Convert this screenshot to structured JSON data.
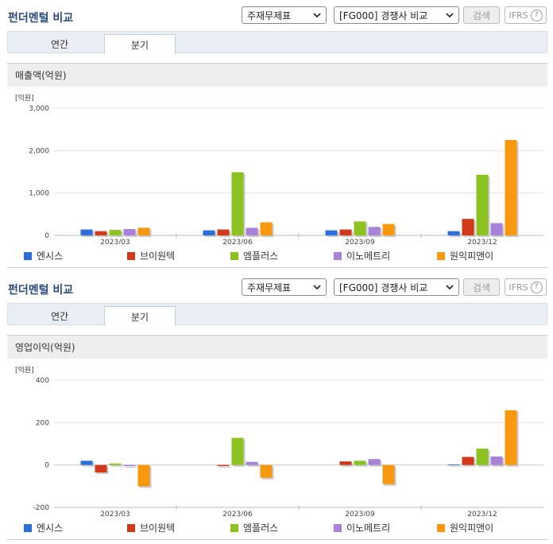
{
  "header": {
    "title": "펀더멘털 비교",
    "statement_select": "주재무제표",
    "compare_select": "[FG000] 경쟁사 비교",
    "search_label": "검색",
    "ifrs_label": "IFRS",
    "help_glyph": "?"
  },
  "tabs": [
    {
      "label": "연간",
      "active": false
    },
    {
      "label": "분기",
      "active": true
    }
  ],
  "colors": {
    "엔시스": "#2c6fd8",
    "브이원텍": "#d0391a",
    "엠플러스": "#8cc21f",
    "이노메트리": "#a882d9",
    "원익피앤이": "#f7980f"
  },
  "chart_data": [
    {
      "type": "bar",
      "title": "매출액(억원)",
      "unit_label": "[억원]",
      "categories": [
        "2023/03",
        "2023/06",
        "2023/09",
        "2023/12"
      ],
      "ylim": [
        0,
        3000
      ],
      "yticks": [
        0,
        1000,
        2000,
        3000
      ],
      "ytick_labels": [
        "0",
        "1,000",
        "2,000",
        "3,000"
      ],
      "grid": true,
      "legend_position": "bottom",
      "series": [
        {
          "name": "엔시스",
          "values": [
            140,
            120,
            120,
            100
          ]
        },
        {
          "name": "브이원텍",
          "values": [
            100,
            140,
            140,
            390
          ]
        },
        {
          "name": "엠플러스",
          "values": [
            130,
            1490,
            330,
            1430
          ]
        },
        {
          "name": "이노메트리",
          "values": [
            150,
            180,
            200,
            290
          ]
        },
        {
          "name": "원익피앤이",
          "values": [
            180,
            310,
            270,
            2250
          ]
        }
      ]
    },
    {
      "type": "bar",
      "title": "영업이익(억원)",
      "unit_label": "[억원]",
      "categories": [
        "2023/03",
        "2023/06",
        "2023/09",
        "2023/12"
      ],
      "ylim": [
        -200,
        400
      ],
      "yticks": [
        -200,
        0,
        200,
        400
      ],
      "ytick_labels": [
        "-200",
        "0",
        "200",
        "400"
      ],
      "grid": true,
      "legend_position": "bottom",
      "series": [
        {
          "name": "엔시스",
          "values": [
            20,
            0,
            0,
            3
          ]
        },
        {
          "name": "브이원텍",
          "values": [
            -35,
            -5,
            17,
            38
          ]
        },
        {
          "name": "엠플러스",
          "values": [
            7,
            128,
            20,
            77
          ]
        },
        {
          "name": "이노메트리",
          "values": [
            -5,
            15,
            28,
            40
          ]
        },
        {
          "name": "원익피앤이",
          "values": [
            -100,
            -60,
            -90,
            258
          ]
        }
      ]
    }
  ]
}
